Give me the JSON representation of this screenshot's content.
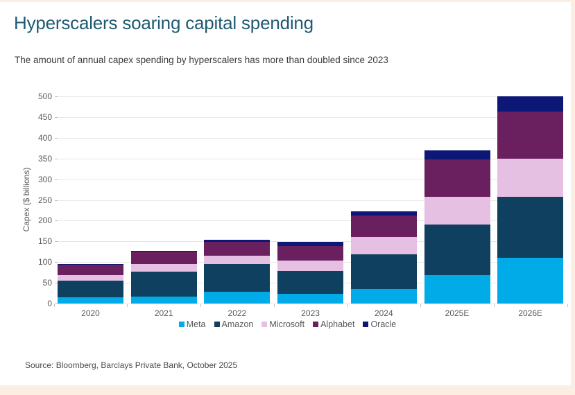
{
  "page": {
    "title": "Hyperscalers soaring capital spending",
    "subtitle": "The amount of annual capex spending by hyperscalers has more than doubled since 2023",
    "source": "Source: Bloomberg, Barclays Private Bank, October 2025"
  },
  "colors": {
    "title_text": "#1E5A72",
    "subtitle_text": "#3A3A3A",
    "axis_text": "#595959",
    "source_text": "#4A4A4A",
    "gridline": "#E8E8E8",
    "tick": "#BFBFBF",
    "page_edge": "#FBEFE3"
  },
  "chart_data": {
    "type": "bar",
    "stacked": true,
    "title": "Hyperscalers soaring capital spending",
    "subtitle": "The amount of annual capex spending by hyperscalers has more than doubled since 2023",
    "xlabel": "",
    "ylabel": "Capex ($ billions)",
    "ylim": [
      0,
      500
    ],
    "ytick_step": 50,
    "grid": true,
    "legend_position": "bottom",
    "categories": [
      "2020",
      "2021",
      "2022",
      "2023",
      "2024",
      "2025E",
      "2026E"
    ],
    "series": [
      {
        "name": "Meta",
        "color": "#00ABE8",
        "values": [
          15,
          17,
          28,
          24,
          35,
          68,
          110
        ]
      },
      {
        "name": "Amazon",
        "color": "#0F405F",
        "values": [
          40,
          60,
          68,
          55,
          83,
          122,
          147
        ]
      },
      {
        "name": "Microsoft",
        "color": "#E5C0E2",
        "values": [
          13,
          19,
          19,
          24,
          42,
          67,
          92
        ]
      },
      {
        "name": "Alphabet",
        "color": "#6A1F5F",
        "values": [
          26,
          29,
          34,
          35,
          53,
          91,
          114
        ]
      },
      {
        "name": "Oracle",
        "color": "#0D1775",
        "values": [
          1,
          2,
          5,
          10,
          10,
          22,
          37
        ]
      }
    ],
    "totals": [
      95,
      127,
      154,
      148,
      223,
      370,
      500
    ]
  }
}
